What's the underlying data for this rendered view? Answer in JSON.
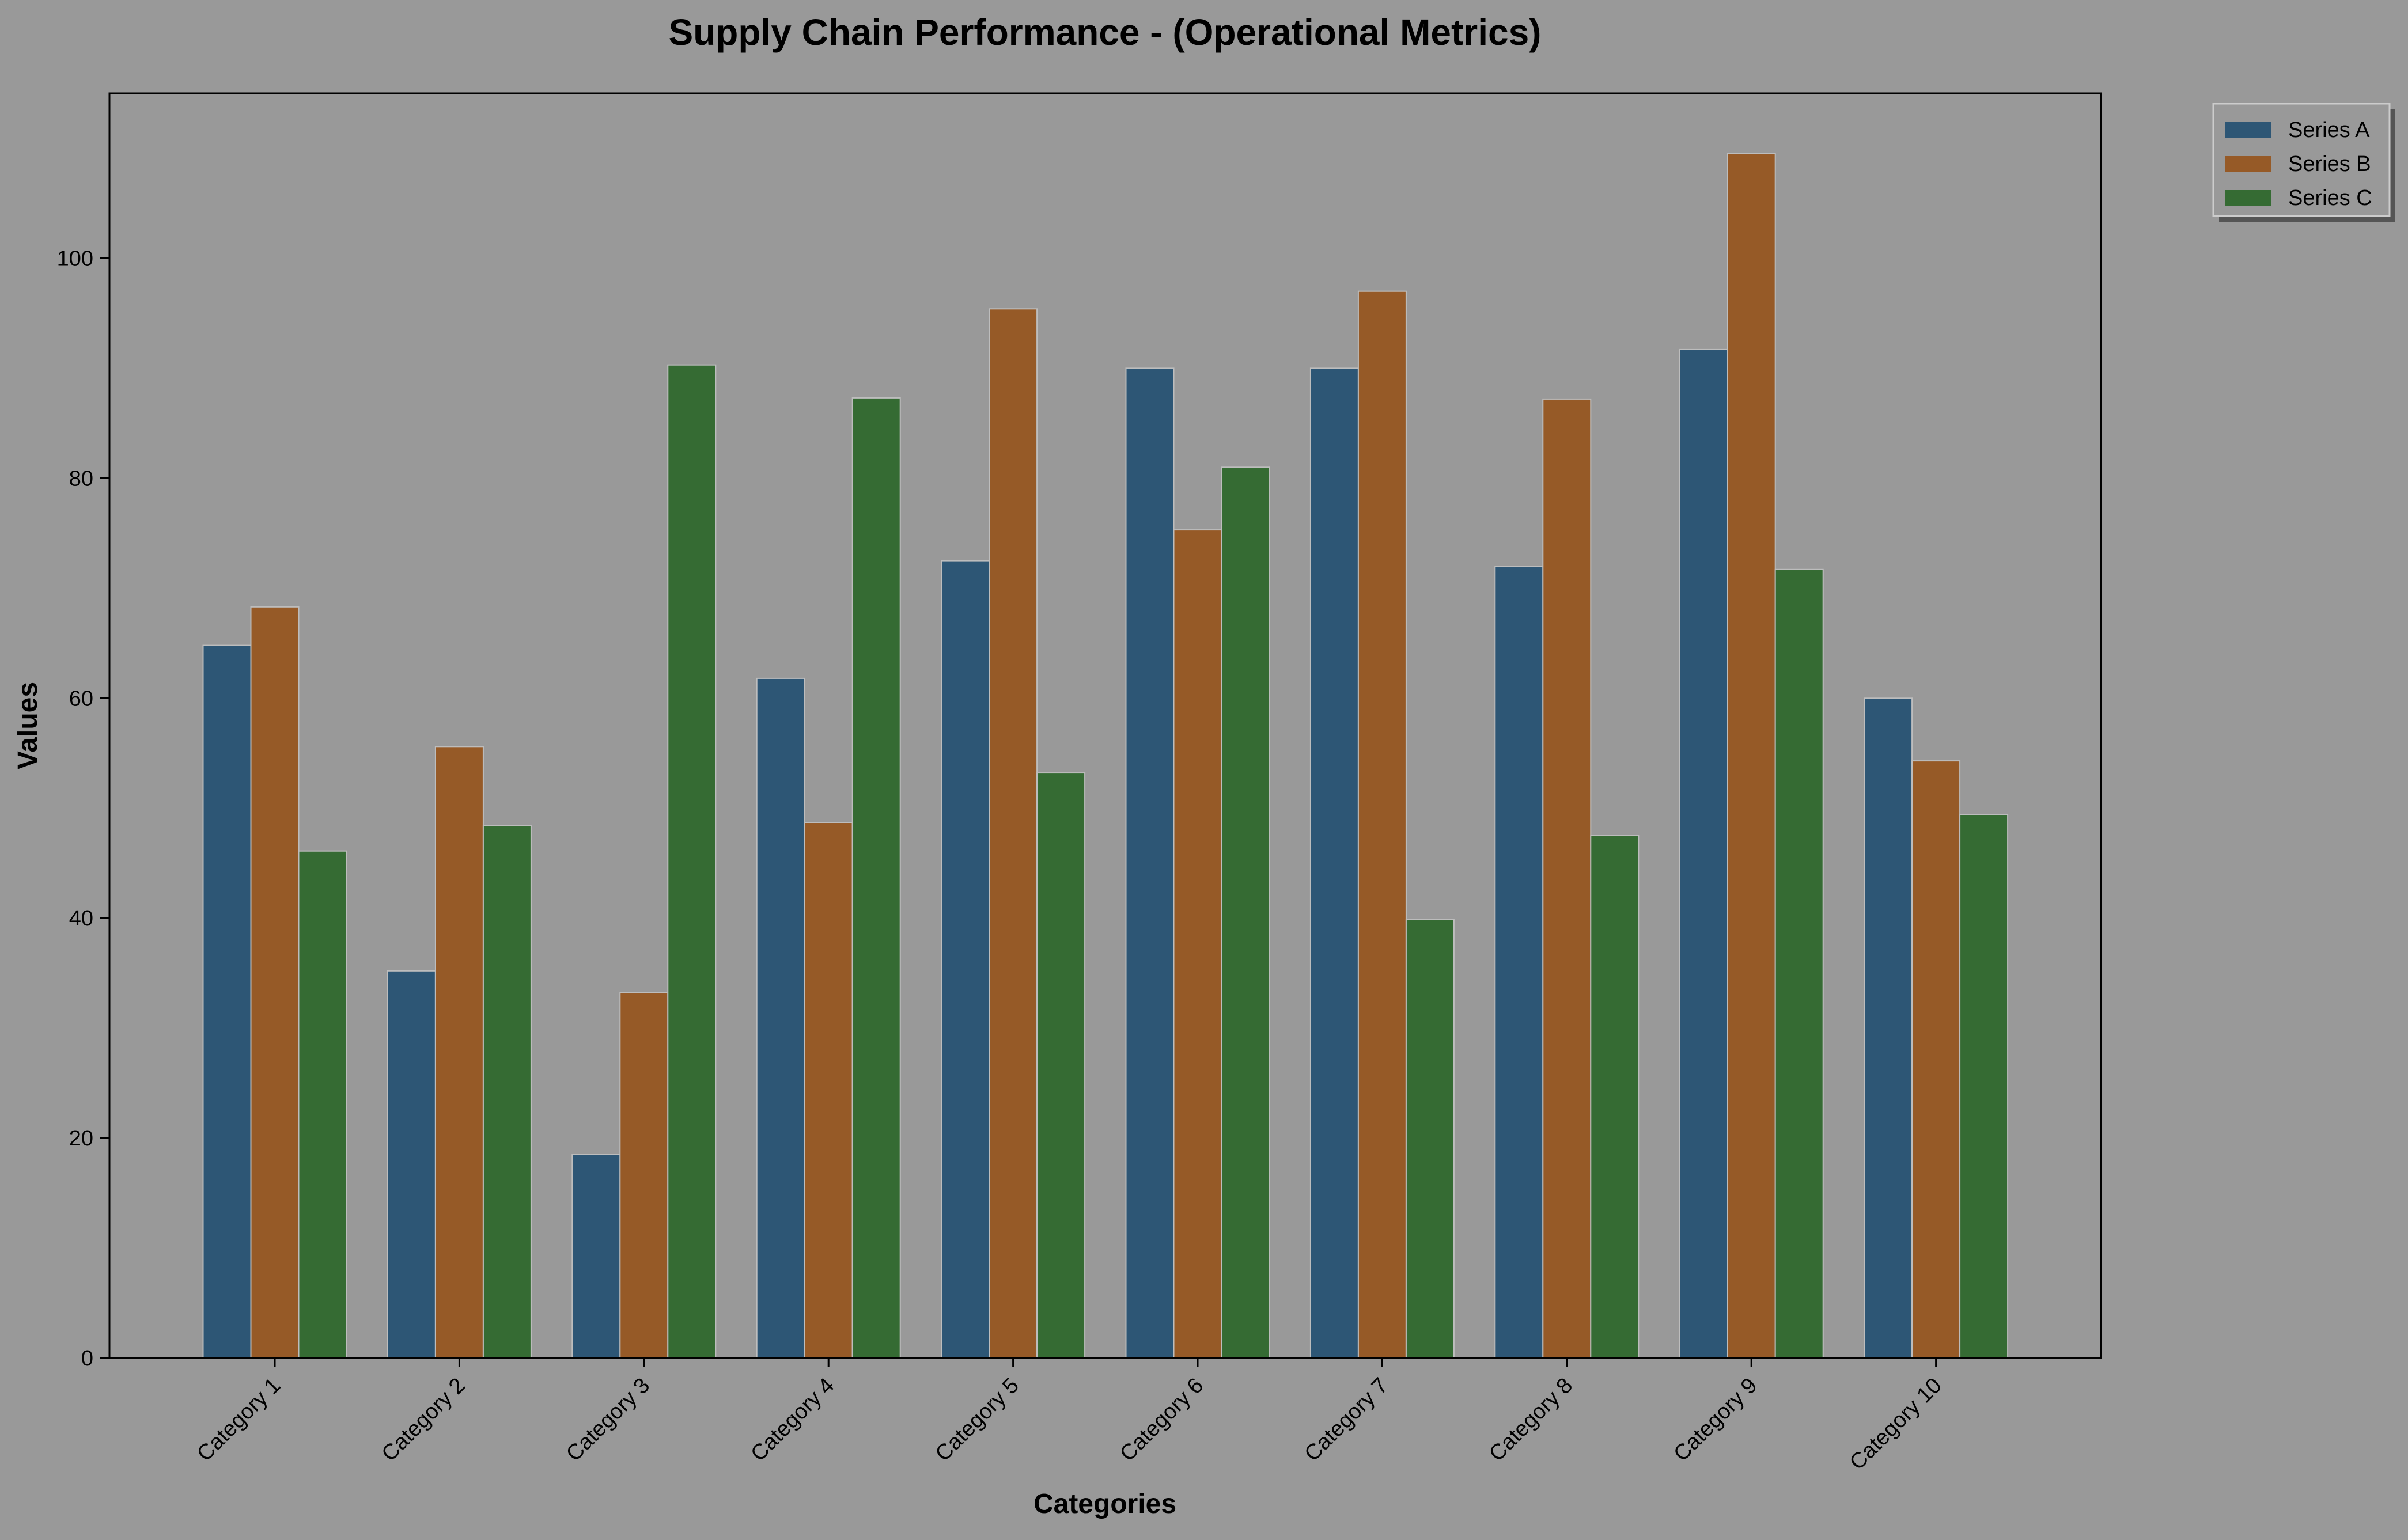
{
  "chart_data": {
    "type": "bar",
    "title": "Supply Chain Performance - (Operational Metrics)",
    "xlabel": "Categories",
    "ylabel": "Values",
    "ylim": [
      0,
      115
    ],
    "yticks": [
      0,
      20,
      40,
      60,
      80,
      100
    ],
    "grid": false,
    "legend_position": "top-right",
    "background_color": "#999999",
    "categories": [
      "Category 1",
      "Category 2",
      "Category 3",
      "Category 4",
      "Category 5",
      "Category 6",
      "Category 7",
      "Category 8",
      "Category 9",
      "Category 10"
    ],
    "series": [
      {
        "name": "Series A",
        "color": "#2d5675",
        "values": [
          64.8,
          35.2,
          18.5,
          61.8,
          72.5,
          90.0,
          90.0,
          72.0,
          91.7,
          60.0
        ]
      },
      {
        "name": "Series B",
        "color": "#965a27",
        "values": [
          68.3,
          55.6,
          33.2,
          48.7,
          95.4,
          75.3,
          97.0,
          87.2,
          109.5,
          54.3
        ]
      },
      {
        "name": "Series C",
        "color": "#356b33",
        "values": [
          46.1,
          48.4,
          90.3,
          87.3,
          53.2,
          81.0,
          39.9,
          47.5,
          71.7,
          49.4
        ]
      }
    ]
  }
}
